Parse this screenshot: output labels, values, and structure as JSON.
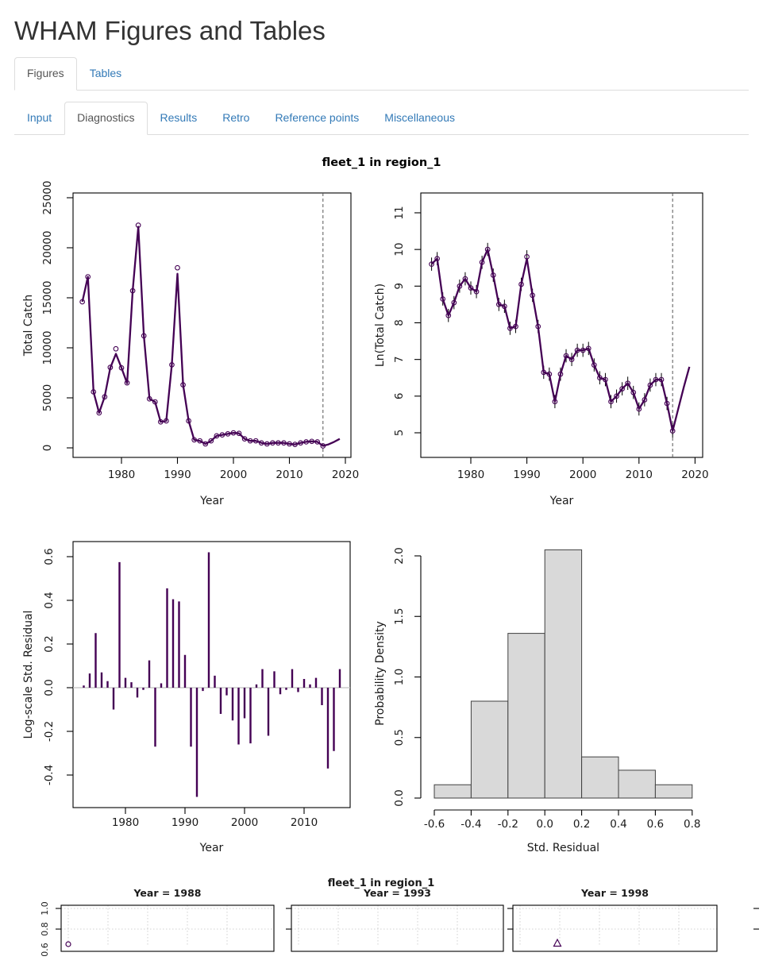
{
  "page": {
    "title": "WHAM Figures and Tables"
  },
  "tabs_primary": {
    "items": [
      {
        "label": "Figures"
      },
      {
        "label": "Tables"
      }
    ]
  },
  "tabs_secondary": {
    "items": [
      {
        "label": "Input"
      },
      {
        "label": "Diagnostics"
      },
      {
        "label": "Results"
      },
      {
        "label": "Retro"
      },
      {
        "label": "Reference points"
      },
      {
        "label": "Miscellaneous"
      }
    ]
  },
  "figure_title": "fleet_1 in region_1",
  "colors": {
    "series": "#440154",
    "ci_bar": "#000000",
    "dashed_line": "#555555",
    "zero_line": "#c0c0c0",
    "hist_fill": "#d9d9d9",
    "hist_border": "#404040",
    "grid_dotted": "#d0d0d0",
    "link_blue": "#337ab7"
  },
  "chart_data": [
    {
      "type": "line",
      "title": "",
      "xlabel": "Year",
      "ylabel": "Total Catch",
      "x_start": 1973,
      "observed": [
        14600,
        17100,
        5600,
        3500,
        5100,
        8050,
        9900,
        8000,
        6500,
        15700,
        22250,
        11200,
        4900,
        4600,
        2600,
        2700,
        8300,
        18000,
        6300,
        2700,
        800,
        700,
        400,
        700,
        1200,
        1300,
        1400,
        1500,
        1450,
        900,
        700,
        700,
        500,
        400,
        500,
        500,
        500,
        400,
        350,
        500,
        600,
        650,
        600,
        200
      ],
      "predicted": [
        14600,
        17100,
        5600,
        3500,
        5100,
        8000,
        9400,
        8000,
        6450,
        15700,
        22100,
        11200,
        4900,
        4600,
        2600,
        2700,
        8300,
        17400,
        6300,
        2700,
        800,
        700,
        400,
        700,
        1200,
        1300,
        1400,
        1500,
        1450,
        900,
        700,
        700,
        500,
        400,
        500,
        500,
        500,
        400,
        350,
        500,
        600,
        650,
        600,
        200,
        350,
        600,
        900
      ],
      "vline_x": 2016,
      "xticks": [
        1980,
        1990,
        2000,
        2010,
        2020
      ],
      "xtick_labels": [
        "1980",
        "1990",
        "2000",
        "2010",
        "2020"
      ],
      "yticks": [
        0,
        5000,
        10000,
        15000,
        20000,
        25000
      ],
      "ytick_labels": [
        "0",
        "5000",
        "10000",
        "15000",
        "20000",
        "25000"
      ],
      "ylim": [
        0,
        25000
      ],
      "legend": "solid line = predicted, open circles = observed"
    },
    {
      "type": "line-ci",
      "title": "",
      "xlabel": "Year",
      "ylabel": "Ln(Total Catch)",
      "x_start": 1973,
      "observed": [
        9.6,
        9.75,
        8.65,
        8.2,
        8.55,
        9.0,
        9.2,
        8.95,
        8.85,
        9.65,
        10.0,
        9.3,
        8.5,
        8.45,
        7.85,
        7.9,
        9.05,
        9.8,
        8.75,
        7.9,
        6.65,
        6.6,
        5.85,
        6.6,
        7.1,
        7.0,
        7.25,
        7.25,
        7.3,
        6.85,
        6.5,
        6.45,
        5.85,
        6.0,
        6.2,
        6.35,
        6.1,
        5.65,
        5.9,
        6.3,
        6.45,
        6.45,
        5.8,
        5.05
      ],
      "predicted": [
        9.6,
        9.75,
        8.65,
        8.2,
        8.55,
        9.0,
        9.2,
        8.95,
        8.85,
        9.65,
        10.0,
        9.3,
        8.5,
        8.45,
        7.85,
        7.9,
        9.05,
        9.75,
        8.75,
        7.9,
        6.65,
        6.6,
        5.85,
        6.6,
        7.1,
        7.0,
        7.25,
        7.25,
        7.3,
        6.85,
        6.5,
        6.45,
        5.85,
        6.0,
        6.2,
        6.35,
        6.1,
        5.65,
        5.9,
        6.3,
        6.45,
        6.45,
        5.8,
        5.05,
        5.65,
        6.25,
        6.8
      ],
      "ci_halfwidth": 0.18,
      "vline_x": 2016,
      "xticks": [
        1980,
        1990,
        2000,
        2010,
        2020
      ],
      "xtick_labels": [
        "1980",
        "1990",
        "2000",
        "2010",
        "2020"
      ],
      "yticks": [
        5,
        6,
        7,
        8,
        9,
        10,
        11
      ],
      "ytick_labels": [
        "5",
        "6",
        "7",
        "8",
        "9",
        "10",
        "11"
      ],
      "ylim": [
        4.6,
        11.3
      ]
    },
    {
      "type": "needle",
      "title": "",
      "xlabel": "Year",
      "ylabel": "Log-scale Std. Residual",
      "x_start": 1973,
      "values": [
        0.01,
        0.065,
        0.25,
        0.07,
        0.03,
        -0.1,
        0.575,
        0.045,
        0.025,
        -0.045,
        -0.01,
        0.125,
        -0.27,
        0.02,
        0.455,
        0.405,
        0.395,
        0.15,
        -0.27,
        -0.5,
        -0.015,
        0.62,
        0.055,
        -0.12,
        -0.035,
        -0.15,
        -0.26,
        -0.14,
        -0.255,
        0.015,
        0.085,
        -0.22,
        0.075,
        -0.03,
        -0.01,
        0.085,
        -0.02,
        0.04,
        0.015,
        0.045,
        -0.08,
        -0.37,
        -0.29,
        0.085
      ],
      "xticks": [
        1980,
        1990,
        2000,
        2010
      ],
      "xtick_labels": [
        "1980",
        "1990",
        "2000",
        "2010"
      ],
      "yticks": [
        -0.4,
        -0.2,
        0,
        0.2,
        0.4,
        0.6
      ],
      "ytick_labels": [
        "-0.4",
        "-0.2",
        "0.0",
        "0.2",
        "0.4",
        "0.6"
      ],
      "ylim": [
        -0.55,
        0.65
      ]
    },
    {
      "type": "histogram",
      "title": "",
      "xlabel": "Std. Residual",
      "ylabel": "Probability Density",
      "breaks": [
        -0.6,
        -0.4,
        -0.2,
        0,
        0.2,
        0.4,
        0.6,
        0.8
      ],
      "densities": [
        0.11,
        0.8,
        1.36,
        2.05,
        0.34,
        0.23,
        0.11
      ],
      "xtick_labels": [
        "-0.6",
        "-0.4",
        "-0.2",
        "0.0",
        "0.2",
        "0.4",
        "0.6",
        "0.8"
      ],
      "yticks": [
        0,
        0.5,
        1,
        1.5,
        2
      ],
      "ytick_labels": [
        "0.0",
        "0.5",
        "1.0",
        "1.5",
        "2.0"
      ],
      "ylim": [
        0,
        2.05
      ]
    },
    {
      "type": "panel-row",
      "title": "fleet_1 in region_1",
      "panels": [
        {
          "title": "Year = 1988"
        },
        {
          "title": "Year = 1993"
        },
        {
          "title": "Year = 1998"
        }
      ],
      "ytick_labels": [
        "1.0",
        "0.8",
        "0.6"
      ],
      "yticks": [
        1.0,
        0.8,
        0.6
      ]
    }
  ]
}
